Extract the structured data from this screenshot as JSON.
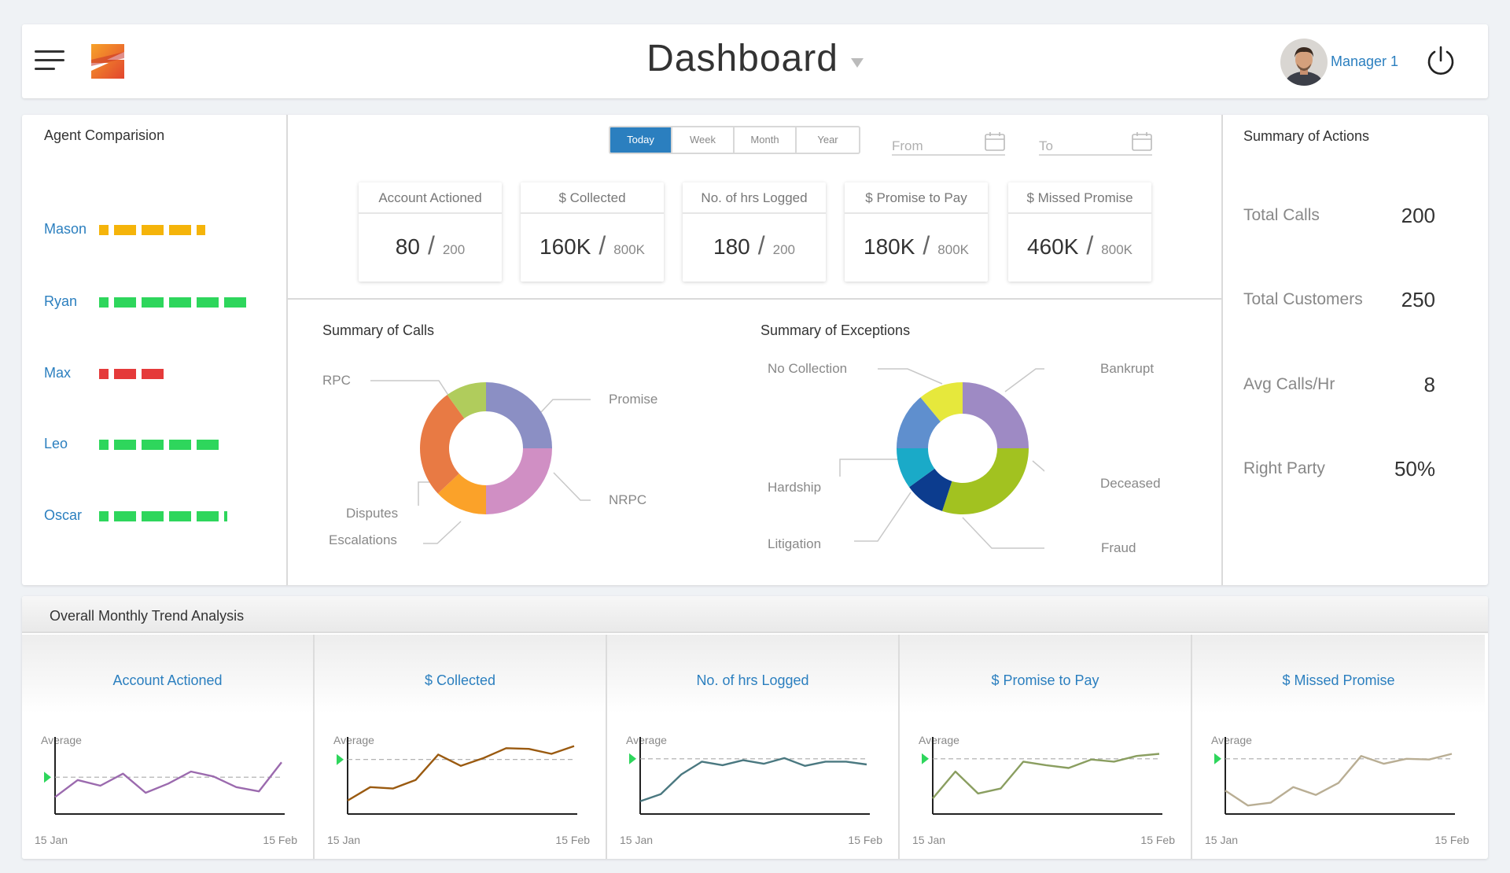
{
  "header": {
    "title": "Dashboard",
    "user_name": "Manager 1"
  },
  "colors": {
    "accent": "#2b7fbf",
    "bar_yellow": "#f5b40a",
    "bar_green": "#2ed65c",
    "bar_red": "#e53a3a"
  },
  "agent_comparison": {
    "title": "Agent Comparision",
    "agents": [
      {
        "name": "Mason",
        "color": "#f5b40a",
        "segments": 4.4
      },
      {
        "name": "Ryan",
        "color": "#2ed65c",
        "segments": 6
      },
      {
        "name": "Max",
        "color": "#e53a3a",
        "segments": 3
      },
      {
        "name": "Leo",
        "color": "#2ed65c",
        "segments": 5
      },
      {
        "name": "Oscar",
        "color": "#2ed65c",
        "segments": 5.1
      }
    ]
  },
  "period_tabs": [
    "Today",
    "Week",
    "Month",
    "Year"
  ],
  "active_tab": "Today",
  "date_range": {
    "from_placeholder": "From",
    "to_placeholder": "To"
  },
  "kpis": [
    {
      "label": "Account Actioned",
      "value": "80",
      "target": "200"
    },
    {
      "label": "$ Collected",
      "value": "160K",
      "target": "800K"
    },
    {
      "label": "No. of hrs Logged",
      "value": "180",
      "target": "200"
    },
    {
      "label": "$ Promise to Pay",
      "value": "180K",
      "target": "800K"
    },
    {
      "label": "$ Missed Promise",
      "value": "460K",
      "target": "800K"
    }
  ],
  "summary_of_calls": {
    "title": "Summary of Calls",
    "labels": {
      "rpc": "RPC",
      "promise": "Promise",
      "nrpc": "NRPC",
      "disputes": "Disputes",
      "escalations": "Escalations"
    },
    "slices": [
      {
        "name": "Promise",
        "value": 25,
        "color": "#8b8fc4"
      },
      {
        "name": "NRPC",
        "value": 25,
        "color": "#d08fc4"
      },
      {
        "name": "Escalations",
        "value": 13,
        "color": "#fba229"
      },
      {
        "name": "Disputes",
        "value": 27,
        "color": "#e87a44"
      },
      {
        "name": "RPC",
        "value": 10,
        "color": "#b0cc5c"
      }
    ]
  },
  "summary_of_exceptions": {
    "title": "Summary of Exceptions",
    "labels": {
      "no_collection": "No Collection",
      "bankrupt": "Bankrupt",
      "hardship": "Hardship",
      "deceased": "Deceased",
      "litigation": "Litigation",
      "fraud": "Fraud"
    },
    "slices": [
      {
        "name": "Bankrupt",
        "value": 25,
        "color": "#9e8ac4"
      },
      {
        "name": "Deceased",
        "value": 30,
        "color": "#a2c220"
      },
      {
        "name": "Fraud",
        "value": 10,
        "color": "#0c3c8e"
      },
      {
        "name": "Litigation",
        "value": 10,
        "color": "#1aaac8"
      },
      {
        "name": "Hardship",
        "value": 14,
        "color": "#5f8fce"
      },
      {
        "name": "No Collection",
        "value": 11,
        "color": "#e6e83c"
      }
    ]
  },
  "summary_of_actions": {
    "title": "Summary of Actions",
    "items": [
      {
        "label": "Total Calls",
        "value": "200"
      },
      {
        "label": "Total Customers",
        "value": "250"
      },
      {
        "label": "Avg Calls/Hr",
        "value": "8"
      },
      {
        "label": "Right Party",
        "value": "50%"
      }
    ]
  },
  "trend": {
    "title": "Overall Monthly Trend Analysis",
    "average_label": "Average",
    "x_start": "15 Jan",
    "x_end": "15 Feb",
    "charts": [
      {
        "title": "Account Actioned",
        "color": "#9b6aae",
        "average": 0.52,
        "values": [
          0.24,
          0.48,
          0.4,
          0.57,
          0.3,
          0.43,
          0.6,
          0.53,
          0.38,
          0.32,
          0.73
        ]
      },
      {
        "title": "$ Collected",
        "color": "#9a5a10",
        "average": 0.77,
        "values": [
          0.19,
          0.38,
          0.36,
          0.48,
          0.84,
          0.68,
          0.79,
          0.93,
          0.92,
          0.85,
          0.96
        ]
      },
      {
        "title": "No. of hrs Logged",
        "color": "#4a7880",
        "average": 0.78,
        "values": [
          0.18,
          0.28,
          0.56,
          0.74,
          0.69,
          0.76,
          0.71,
          0.79,
          0.68,
          0.74,
          0.74,
          0.7
        ]
      },
      {
        "title": "$ Promise to Pay",
        "color": "#8a9e60",
        "average": 0.78,
        "values": [
          0.22,
          0.6,
          0.29,
          0.36,
          0.74,
          0.69,
          0.65,
          0.77,
          0.74,
          0.82,
          0.85
        ]
      },
      {
        "title": "$ Missed Promise",
        "color": "#b9ae94",
        "average": 0.78,
        "values": [
          0.33,
          0.12,
          0.16,
          0.38,
          0.27,
          0.44,
          0.82,
          0.71,
          0.78,
          0.77,
          0.85
        ]
      }
    ]
  }
}
